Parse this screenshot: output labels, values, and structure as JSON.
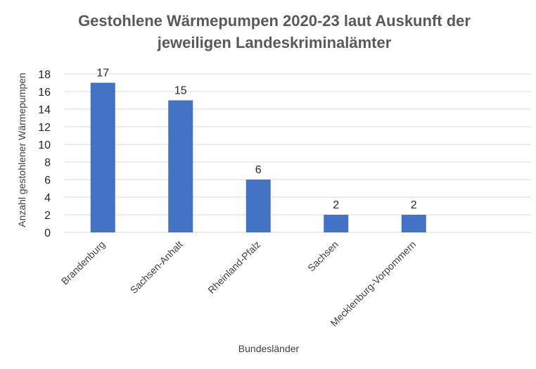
{
  "chart_data": {
    "type": "bar",
    "title_lines": [
      "Gestohlene Wärmepumpen 2020-23 laut Auskunft der",
      "jeweiligen Landeskriminalämter"
    ],
    "xlabel": "Bundesländer",
    "ylabel": "Anzahl gestohlener Wärmepumpen",
    "categories": [
      "Brandenburg",
      "Sachsen-Anhalt",
      "Rheinland-Pfalz",
      "Sachsen",
      "Mecklenburg-Vorpommern"
    ],
    "values": [
      17,
      15,
      6,
      2,
      2
    ],
    "data_labels": [
      "17",
      "15",
      "6",
      "2",
      "2"
    ],
    "yticks": [
      "0",
      "2",
      "4",
      "6",
      "8",
      "10",
      "12",
      "14",
      "16",
      "18"
    ],
    "ylim": [
      0,
      18
    ],
    "grid": true,
    "bar_color": "#4472C4",
    "grid_color": "#D9D9D9"
  }
}
